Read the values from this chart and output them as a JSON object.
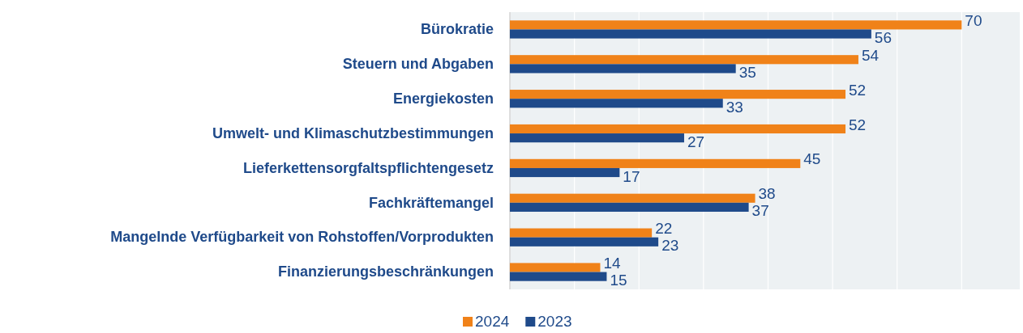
{
  "chart_data": {
    "type": "bar",
    "orientation": "horizontal",
    "categories": [
      "Bürokratie",
      "Steuern und Abgaben",
      "Energiekosten",
      "Umwelt- und Klimaschutzbestimmungen",
      "Lieferkettensorgfaltspflichtengesetz",
      "Fachkräftemangel",
      "Mangelnde Verfügbarkeit von Rohstoffen/Vorprodukten",
      "Finanzierungsbeschränkungen"
    ],
    "series": [
      {
        "name": "2024",
        "color": "#f08219",
        "values": [
          70,
          54,
          52,
          52,
          45,
          38,
          22,
          14
        ]
      },
      {
        "name": "2023",
        "color": "#1f4a8a",
        "values": [
          56,
          35,
          33,
          27,
          17,
          37,
          23,
          15
        ]
      }
    ],
    "xlim": [
      0,
      79
    ],
    "xticks": [
      0,
      {
        "value": 10,
        "label": null
      },
      {
        "value": 20,
        "label": null
      },
      {
        "value": 30,
        "label": null
      },
      {
        "value": 40,
        "label": null
      },
      {
        "value": 50,
        "label": null
      },
      {
        "value": 60,
        "label": null
      },
      {
        "value": 70,
        "label": null
      }
    ],
    "grid": "x",
    "legend": "bottom",
    "data_labels": true,
    "tick_labels": "y"
  }
}
